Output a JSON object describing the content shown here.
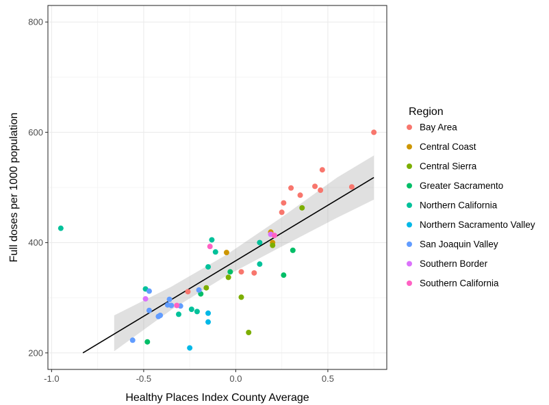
{
  "chart_data": {
    "type": "scatter",
    "xlabel": "Healthy Places Index County Average",
    "ylabel": "Full doses per 1000 population",
    "xlim": [
      -1.02,
      0.82
    ],
    "ylim": [
      170,
      830
    ],
    "xticks": [
      -1.0,
      -0.5,
      0.0,
      0.5
    ],
    "xtick_labels": [
      "-1.0",
      "-0.5",
      "0.0",
      "0.5"
    ],
    "yticks": [
      200,
      400,
      600,
      800
    ],
    "ytick_labels": [
      "200",
      "400",
      "600",
      "800"
    ],
    "grid": true,
    "legend_position": "right",
    "legend_title": "Region",
    "series": [
      {
        "name": "Bay Area",
        "color": "#F8766D",
        "points": [
          [
            0.75,
            600
          ],
          [
            0.47,
            532
          ],
          [
            0.43,
            502
          ],
          [
            0.35,
            486
          ],
          [
            0.3,
            499
          ],
          [
            0.26,
            472
          ],
          [
            0.25,
            455
          ],
          [
            0.46,
            495
          ],
          [
            0.63,
            501
          ],
          [
            0.1,
            345
          ],
          [
            0.03,
            347
          ],
          [
            -0.26,
            311
          ]
        ]
      },
      {
        "name": "Central Coast",
        "color": "#CD9600",
        "points": [
          [
            -0.05,
            382
          ],
          [
            0.19,
            419
          ],
          [
            0.2,
            400
          ]
        ]
      },
      {
        "name": "Central Sierra",
        "color": "#7CAE00",
        "points": [
          [
            0.36,
            463
          ],
          [
            0.2,
            395
          ],
          [
            -0.16,
            318
          ],
          [
            -0.04,
            337
          ],
          [
            0.03,
            301
          ],
          [
            0.07,
            237
          ]
        ]
      },
      {
        "name": "Greater Sacramento",
        "color": "#00BE67",
        "points": [
          [
            0.31,
            386
          ],
          [
            0.26,
            341
          ],
          [
            -0.03,
            347
          ],
          [
            -0.19,
            307
          ],
          [
            -0.48,
            220
          ]
        ]
      },
      {
        "name": "Northern California",
        "color": "#00C19A",
        "points": [
          [
            -0.95,
            426
          ],
          [
            -0.13,
            405
          ],
          [
            -0.11,
            383
          ],
          [
            -0.15,
            356
          ],
          [
            0.13,
            400
          ],
          [
            0.13,
            361
          ],
          [
            -0.49,
            316
          ],
          [
            -0.24,
            279
          ],
          [
            -0.31,
            270
          ],
          [
            -0.21,
            275
          ]
        ]
      },
      {
        "name": "Northern Sacramento Valley",
        "color": "#00B8E7",
        "points": [
          [
            -0.15,
            272
          ],
          [
            -0.15,
            256
          ],
          [
            -0.25,
            209
          ]
        ]
      },
      {
        "name": "San Joaquin Valley",
        "color": "#619CFF",
        "points": [
          [
            -0.47,
            312
          ],
          [
            -0.36,
            297
          ],
          [
            -0.37,
            287
          ],
          [
            -0.35,
            286
          ],
          [
            -0.3,
            285
          ],
          [
            -0.2,
            314
          ],
          [
            -0.47,
            277
          ],
          [
            -0.42,
            266
          ],
          [
            -0.41,
            268
          ],
          [
            -0.56,
            223
          ]
        ]
      },
      {
        "name": "Southern Border",
        "color": "#DB72FB",
        "points": [
          [
            0.19,
            415
          ],
          [
            -0.49,
            298
          ]
        ]
      },
      {
        "name": "Southern California",
        "color": "#FF61C3",
        "points": [
          [
            -0.14,
            393
          ],
          [
            0.21,
            413
          ],
          [
            -0.32,
            286
          ]
        ]
      }
    ],
    "regression": {
      "x": [
        -0.83,
        0.75
      ],
      "y": [
        200,
        518
      ]
    },
    "confidence_band": {
      "x": [
        -0.66,
        -0.35,
        -0.05,
        0.25,
        0.55,
        0.75
      ],
      "upper": [
        268,
        320,
        378,
        446,
        518,
        558
      ],
      "lower": [
        203,
        278,
        340,
        393,
        445,
        478
      ]
    }
  }
}
